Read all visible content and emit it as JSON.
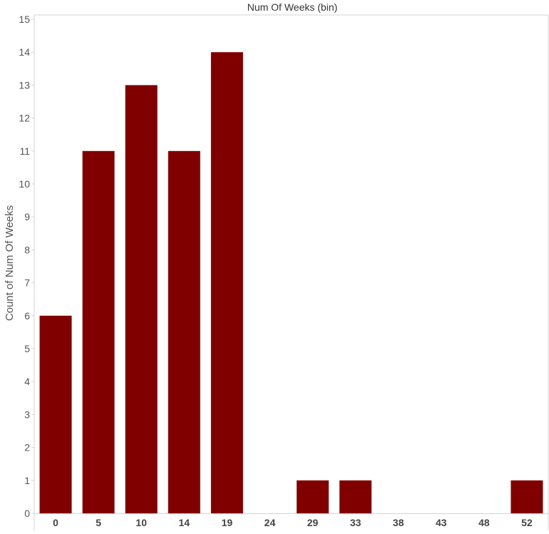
{
  "chart_data": {
    "type": "bar",
    "title": "",
    "xlabel": "Num Of Weeks (bin)",
    "ylabel": "Count of Num Of Weeks",
    "categories": [
      "0",
      "5",
      "10",
      "14",
      "19",
      "24",
      "29",
      "33",
      "38",
      "43",
      "48",
      "52"
    ],
    "values": [
      6,
      11,
      13,
      11,
      14,
      0,
      1,
      1,
      0,
      0,
      0,
      1
    ],
    "y_ticks": [
      "0",
      "1",
      "2",
      "3",
      "4",
      "5",
      "6",
      "7",
      "8",
      "9",
      "10",
      "11",
      "12",
      "13",
      "14",
      "15"
    ],
    "ylim": [
      0,
      15
    ],
    "grid": false,
    "bar_color": "#800000",
    "axis_color": "#d4d4d4"
  }
}
